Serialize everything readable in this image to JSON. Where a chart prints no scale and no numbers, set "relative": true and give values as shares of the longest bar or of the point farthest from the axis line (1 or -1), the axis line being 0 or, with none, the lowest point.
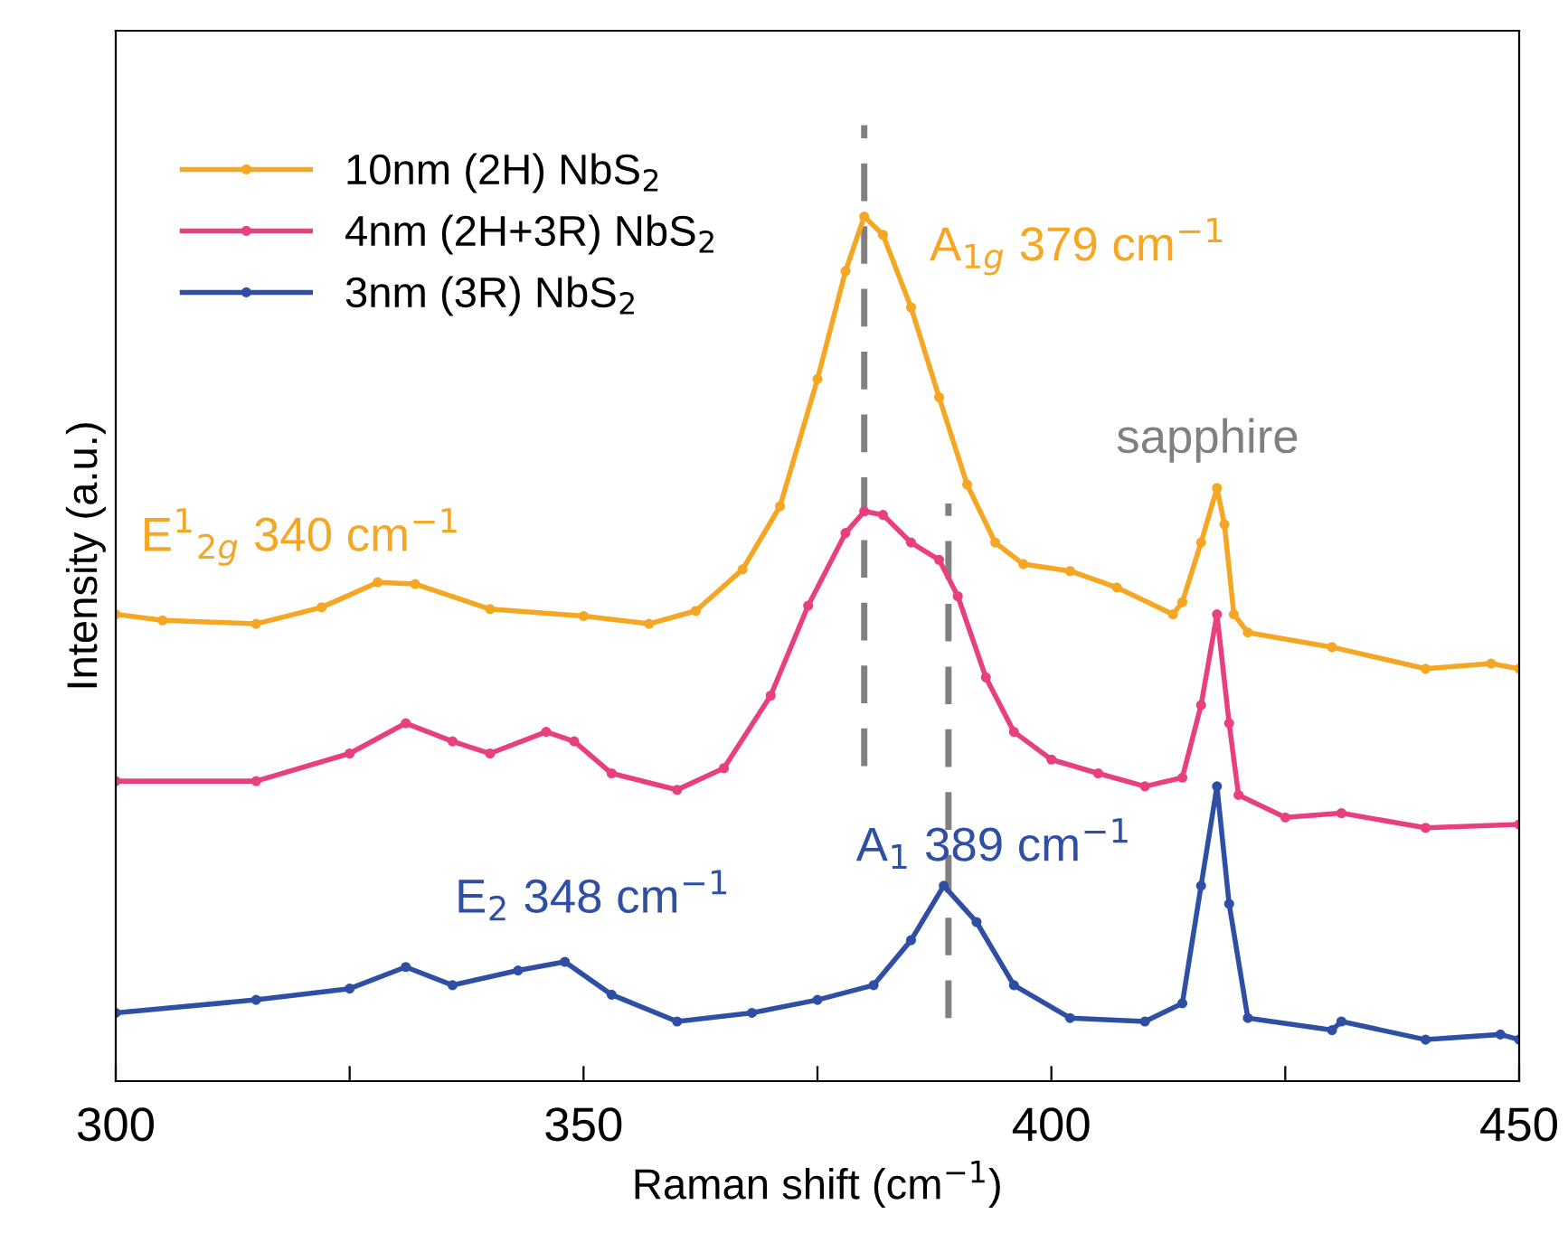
{
  "chart_data": {
    "type": "line",
    "relative": true,
    "xlabel": "Raman shift (cm$^{−1}$)",
    "ylabel": "Intensity (a.u.)",
    "xlim": [
      300,
      450
    ],
    "xticks": [
      300,
      {
        "value": 325,
        "label": null
      },
      350,
      {
        "value": 375,
        "label": null
      },
      400,
      {
        "value": 425,
        "label": null
      },
      450
    ],
    "tick_labels": "x",
    "legend": "top left",
    "marker": "circle",
    "line_style": "solid",
    "grid": false,
    "series": [
      {
        "name": "10nm (2H) NbS$_{2}$",
        "color": "#f5a623",
        "x": [
          300,
          305,
          315,
          322,
          328,
          332,
          340,
          350,
          357,
          362,
          367,
          371,
          375,
          378,
          380,
          382,
          385,
          388,
          391,
          394,
          397,
          402,
          407,
          413,
          414,
          416,
          417.7,
          418.5,
          419.5,
          421,
          430,
          440,
          447,
          450
        ],
        "values": [
          0.54,
          0.533,
          0.529,
          0.548,
          0.577,
          0.575,
          0.546,
          0.538,
          0.529,
          0.544,
          0.592,
          0.665,
          0.812,
          0.937,
          1.0,
          0.979,
          0.895,
          0.791,
          0.69,
          0.623,
          0.598,
          0.59,
          0.571,
          0.54,
          0.554,
          0.623,
          0.686,
          0.644,
          0.54,
          0.519,
          0.502,
          0.477,
          0.483,
          0.477
        ]
      },
      {
        "name": "4nm (2H+3R) NbS$_{2}$",
        "color": "#e8407f",
        "x": [
          300,
          315,
          325,
          331,
          336,
          340,
          346,
          349,
          353,
          360,
          365,
          370,
          374,
          378,
          380,
          382,
          385,
          388,
          390,
          393,
          396,
          400,
          405,
          410,
          414,
          416,
          417.7,
          419,
          420,
          425,
          431,
          440,
          450
        ],
        "values": [
          0.347,
          0.347,
          0.379,
          0.414,
          0.393,
          0.379,
          0.404,
          0.393,
          0.356,
          0.337,
          0.362,
          0.446,
          0.55,
          0.634,
          0.659,
          0.655,
          0.623,
          0.603,
          0.561,
          0.467,
          0.404,
          0.372,
          0.356,
          0.341,
          0.351,
          0.435,
          0.54,
          0.414,
          0.331,
          0.305,
          0.31,
          0.293,
          0.297
        ]
      },
      {
        "name": "3nm (3R) NbS$_{2}$",
        "color": "#2e4fa3",
        "x": [
          300,
          315,
          325,
          331,
          336,
          343,
          348,
          353,
          360,
          368,
          375,
          381,
          385,
          388.5,
          392,
          396,
          402,
          410,
          414,
          416,
          417.7,
          419,
          421,
          430,
          431,
          440,
          448,
          450
        ],
        "values": [
          0.079,
          0.094,
          0.107,
          0.132,
          0.111,
          0.128,
          0.138,
          0.1,
          0.069,
          0.079,
          0.094,
          0.111,
          0.163,
          0.226,
          0.184,
          0.111,
          0.073,
          0.069,
          0.09,
          0.226,
          0.341,
          0.205,
          0.073,
          0.059,
          0.069,
          0.048,
          0.054,
          0.048
        ]
      }
    ],
    "ref_lines": [
      {
        "axis": "x",
        "value": 380,
        "color": "#808080",
        "line_style": "dashed"
      },
      {
        "axis": "x",
        "value": 389,
        "color": "#808080",
        "line_style": "dashed"
      }
    ],
    "annotations": [
      {
        "text": "E$^{1}$$_{2g}$ 340 cm$^{−1}$",
        "x": 330,
        "y": 0.577
      },
      {
        "text": "A$_{1g}$ 379 cm$^{−1}$",
        "x": 380,
        "y": 1.0
      },
      {
        "text": "A$_{1}$ 389 cm$^{−1}$",
        "x": 388.5,
        "y": 0.226
      },
      "E$_{2}$ 348 cm$^{−1}$",
      "sapphire"
    ]
  }
}
